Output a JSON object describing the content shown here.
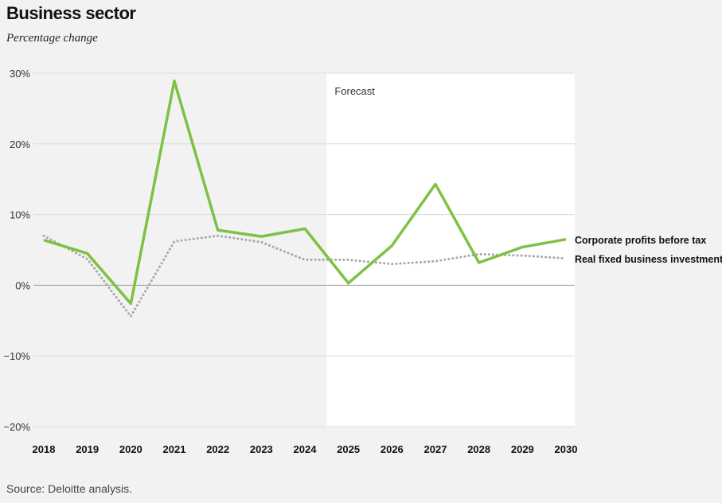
{
  "chart_data": {
    "type": "line",
    "title": "Business sector",
    "subtitle": "Percentage change",
    "source": "Source: Deloitte analysis.",
    "annotation": "Forecast",
    "forecast_start": 2025,
    "x": [
      2018,
      2019,
      2020,
      2021,
      2022,
      2023,
      2024,
      2025,
      2026,
      2027,
      2028,
      2029,
      2030
    ],
    "ylim": [
      -20,
      30
    ],
    "yticks": [
      30,
      20,
      10,
      0,
      -10,
      -20
    ],
    "ytick_labels": [
      "30%",
      "20%",
      "10%",
      "0%",
      "−10%",
      "−20%"
    ],
    "series": [
      {
        "name": "Corporate profits before tax",
        "color": "#7dc242",
        "style": "solid",
        "values": [
          6.4,
          4.5,
          -2.6,
          28.9,
          7.8,
          6.9,
          8.0,
          0.3,
          5.6,
          14.3,
          3.2,
          5.4,
          6.5
        ]
      },
      {
        "name": "Real fixed business investment",
        "color": "#a7a7a9",
        "style": "dotted",
        "values": [
          7.0,
          3.7,
          -4.4,
          6.2,
          7.0,
          6.1,
          3.6,
          3.6,
          3.0,
          3.4,
          4.4,
          4.2,
          3.8
        ]
      }
    ],
    "grid": true
  }
}
